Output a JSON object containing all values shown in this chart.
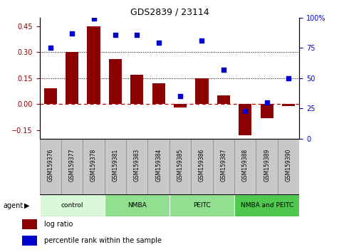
{
  "title": "GDS2839 / 23114",
  "samples": [
    "GSM159376",
    "GSM159377",
    "GSM159378",
    "GSM159381",
    "GSM159383",
    "GSM159384",
    "GSM159385",
    "GSM159386",
    "GSM159387",
    "GSM159388",
    "GSM159389",
    "GSM159390"
  ],
  "log_ratio": [
    0.09,
    0.3,
    0.45,
    0.26,
    0.17,
    0.12,
    -0.02,
    0.15,
    0.05,
    -0.18,
    -0.08,
    -0.01
  ],
  "percentile": [
    75,
    87,
    99,
    86,
    86,
    79,
    35,
    81,
    57,
    23,
    30,
    50
  ],
  "groups": [
    {
      "label": "control",
      "start": 0,
      "end": 3,
      "color": "#d8f8d8"
    },
    {
      "label": "NMBA",
      "start": 3,
      "end": 6,
      "color": "#90e090"
    },
    {
      "label": "PEITC",
      "start": 6,
      "end": 9,
      "color": "#90e090"
    },
    {
      "label": "NMBA and PEITC",
      "start": 9,
      "end": 12,
      "color": "#50c850"
    }
  ],
  "bar_color": "#8b0000",
  "dot_color": "#0000cc",
  "ylim_left": [
    -0.2,
    0.5
  ],
  "ylim_right": [
    0,
    100
  ],
  "yticks_left": [
    -0.15,
    0.0,
    0.15,
    0.3,
    0.45
  ],
  "yticks_right": [
    0,
    25,
    50,
    75,
    100
  ],
  "hlines_dotted": [
    0.15,
    0.3
  ],
  "hline_zero_color": "#cc0000",
  "hline_dotted_color": "#000000",
  "agent_label": "agent",
  "legend_bar_label": "log ratio",
  "legend_dot_label": "percentile rank within the sample",
  "sample_box_color": "#c8c8c8",
  "sample_box_edge": "#888888"
}
